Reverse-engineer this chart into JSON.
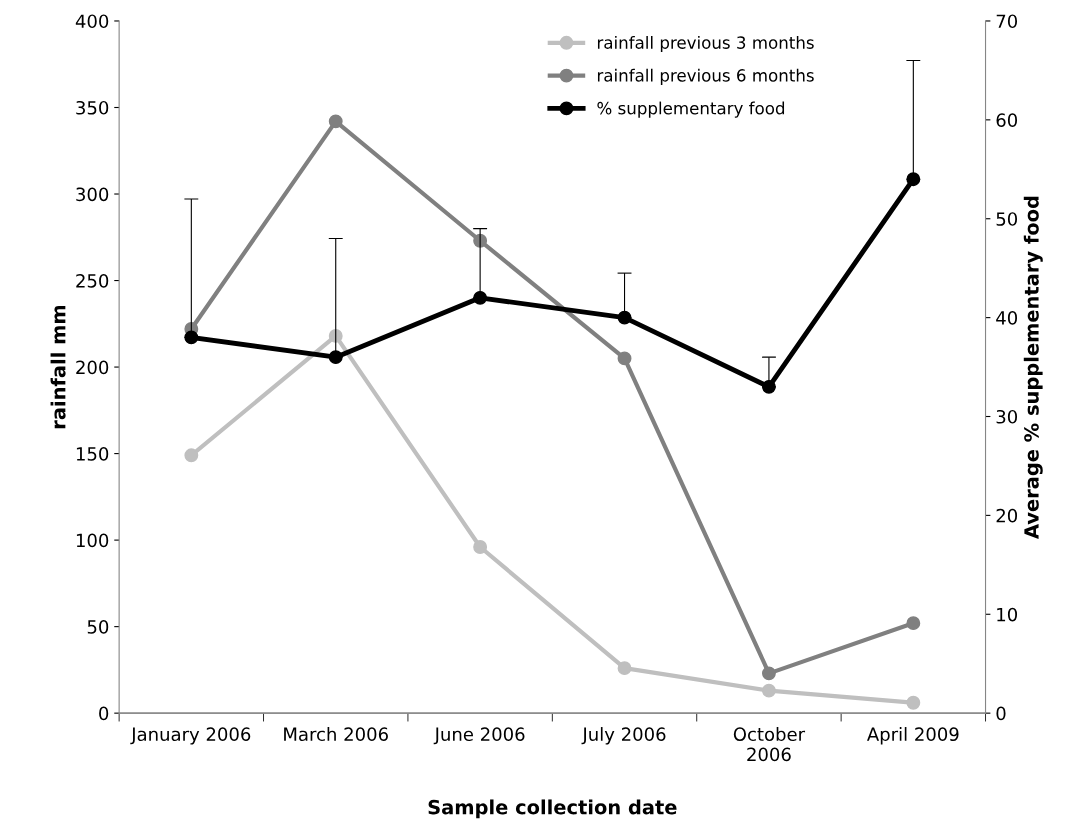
{
  "chart_data": {
    "type": "line",
    "xlabel": "Sample collection date",
    "ylabel": "rainfall mm",
    "y2label": "Average % supplementary food",
    "categories": [
      "January 2006",
      "March 2006",
      "June 2006",
      "July 2006",
      "October\n2006",
      "April 2009"
    ],
    "series": [
      {
        "name": "rainfall previous 3 months",
        "color": "#bfbfbf",
        "values": [
          149,
          218,
          96,
          26,
          13,
          6
        ]
      },
      {
        "name": "rainfall previous 6 months",
        "color": "#808080",
        "values": [
          222,
          342,
          273,
          205,
          23,
          52
        ]
      },
      {
        "name": "% supplementary food",
        "color": "#000000",
        "axis": "y2",
        "values": [
          38,
          36,
          42,
          40,
          33,
          54
        ],
        "errors": [
          [
            38,
            52
          ],
          [
            36,
            48
          ],
          [
            42,
            49
          ],
          [
            40,
            44.5
          ],
          [
            33,
            36
          ],
          [
            54,
            66
          ]
        ]
      }
    ],
    "ylim": [
      0,
      400
    ],
    "yticks": [
      0,
      50,
      100,
      150,
      200,
      250,
      300,
      350,
      400
    ],
    "y2lim": [
      0,
      70
    ],
    "y2ticks": [
      0,
      10,
      20,
      30,
      40,
      50,
      60,
      70
    ],
    "marker": "circle",
    "line_style": "solid",
    "grid": false,
    "legend": "top right"
  }
}
